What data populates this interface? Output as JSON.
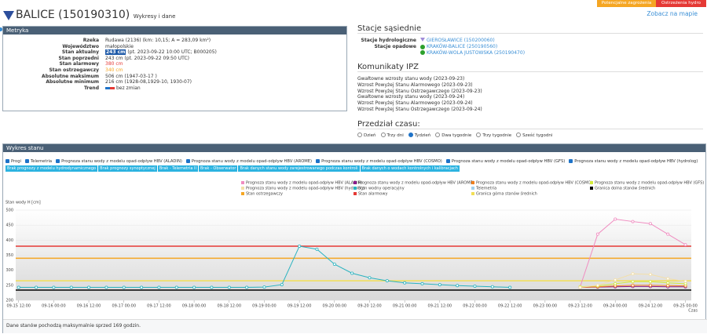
{
  "badges": {
    "warning": "Potencjalne zagrożenia",
    "hydro": "Ostrzeżenia hydro"
  },
  "header": {
    "map_link": "Zobacz na mapie",
    "title": "BALICE (150190310)",
    "subtitle": "Wykresy i dane"
  },
  "metryka": {
    "title": "Metryka",
    "rows": [
      {
        "label": "Rzeka",
        "value": "Rudawa (2136) (km: 10,15; A = 283,09 km²)"
      },
      {
        "label": "Województwo",
        "value": "małopolskie"
      },
      {
        "label": "Stan aktualny",
        "badge": "243 cm",
        "value": "(pt. 2023-09-22 10:00 UTC; B000205)"
      },
      {
        "label": "Stan poprzedni",
        "value": "243 cm (pt. 2023-09-22 09:50 UTC)"
      },
      {
        "label": "Stan alarmowy",
        "value": "380 cm"
      },
      {
        "label": "Stan ostrzegawczy",
        "value": "340 cm"
      },
      {
        "label": "Absolutne maksimum",
        "value": "506 cm (1947-03-17 )"
      },
      {
        "label": "Absolutne minimum",
        "value": "216 cm (1928-08,1929-10, 1930-07)"
      },
      {
        "label": "Trend",
        "value": "bez zmian"
      }
    ]
  },
  "sasiednie": {
    "title": "Stacje sąsiednie",
    "hydro_label": "Stacje hydrologiczne",
    "hydro": [
      "GIEROSŁAWICE (150200060)"
    ],
    "opad_label": "Stacje opadowe",
    "opad": [
      "KRAKÓW-BALICE (250190560)",
      "KRAKÓW-WOLA JUSTOWSKA (250190470)"
    ]
  },
  "komunikaty": {
    "title": "Komunikaty IPZ",
    "items": [
      "Gwałtowne wzrosty stanu wody (2023-09-23)",
      "Wzrost Powyżej Stanu Alarmowego (2023-09-23)",
      "Wzrost Powyżej Stanu Ostrzegawczego (2023-09-23)",
      "Gwałtowne wzrosty stanu wody (2023-09-24)",
      "Wzrost Powyżej Stanu Alarmowego (2023-09-24)",
      "Wzrost Powyżej Stanu Ostrzegawczego (2023-09-24)"
    ]
  },
  "przedzial": {
    "title": "Przedział czasu:",
    "options": [
      "Dzień",
      "Trzy dni",
      "Tydzień",
      "Dwa tygodnie",
      "Trzy tygodnie",
      "Sześć tygodni"
    ],
    "selected": 2
  },
  "wykres": {
    "title": "Wykres stanu",
    "checkboxes": [
      "Progi",
      "Telemetria",
      "Prognoza stanu wody z modelu opad-odpływ HBV (ALADIN)",
      "Prognoza stanu wody z modelu opad-odpływ HBV (AROME)",
      "Prognoza stanu wody z modelu opad-odpływ HBV (COSMO)",
      "Prognoza stanu wody z modelu opad-odpływ HBV (GFS)",
      "Prognoza stanu wody z modelu opad-odpływ HBV (hydrolog)"
    ],
    "buttons": [
      "Brak prognozy z modelu hydrodynamicznego",
      "Brak prognozy synoptycznej",
      "Brak - Telemetria II",
      "Brak - Obserwator",
      "Brak danych stanu wody zarejestrowanego podczas kontroli",
      "Brak danych o wodach kontrolnych i kalibracjach"
    ],
    "footer": "Dane stanów pochodzą maksymalnie sprzed 169 godzin."
  },
  "chart_data": {
    "type": "line",
    "y_label": "Stan wody H [cm]",
    "x_label": "Czas",
    "ylim": [
      200,
      500
    ],
    "yticks": [
      200,
      250,
      300,
      350,
      400,
      450,
      500
    ],
    "xlim": [
      "09-15 11:00",
      "09-25 02:00"
    ],
    "xticks": [
      "09-15 12:00",
      "09-16 00:00",
      "09-16 12:00",
      "09-17 00:00",
      "09-17 12:00",
      "09-18 00:00",
      "09-18 12:00",
      "09-19 00:00",
      "09-19 12:00",
      "09-20 00:00",
      "09-20 12:00",
      "09-21 00:00",
      "09-21 12:00",
      "09-22 00:00",
      "09-22 12:00",
      "09-23 00:00",
      "09-23 12:00",
      "09-24 00:00",
      "09-24 12:00",
      "09-25 00:00"
    ],
    "series": [
      {
        "name": "Prognoza stanu wody z modelu opad-odpływ HBV (ALADIN)",
        "color": "#f08cc0",
        "x": [
          "09-23 12:00",
          "09-23 18:00",
          "09-24 00:00",
          "09-24 06:00",
          "09-24 12:00",
          "09-24 18:00",
          "09-25 00:00"
        ],
        "values": [
          245,
          420,
          470,
          462,
          455,
          420,
          385
        ]
      },
      {
        "name": "Prognoza stanu wody z modelu opad-odpływ HBV (AROME)",
        "color": "#8b1a8b",
        "x": [
          "09-23 12:00",
          "09-23 18:00",
          "09-24 00:00",
          "09-24 06:00",
          "09-24 12:00",
          "09-24 18:00",
          "09-25 00:00"
        ],
        "values": [
          243,
          244,
          245,
          246,
          246,
          245,
          245
        ]
      },
      {
        "name": "Prognoza stanu wody z modelu opad-odpływ HBV (COSMO)",
        "color": "#f07f1e",
        "x": [
          "09-23 12:00",
          "09-23 18:00",
          "09-24 00:00",
          "09-24 06:00",
          "09-24 12:00",
          "09-24 18:00",
          "09-25 00:00"
        ],
        "values": [
          243,
          245,
          248,
          250,
          250,
          249,
          248
        ]
      },
      {
        "name": "Prognoza stanu wody z modelu opad-odpływ HBV (GFS)",
        "color": "#d4ec3a",
        "x": [
          "09-23 12:00",
          "09-23 18:00",
          "09-24 00:00",
          "09-24 06:00",
          "09-24 12:00",
          "09-24 18:00",
          "09-25 00:00"
        ],
        "values": [
          245,
          248,
          255,
          262,
          262,
          258,
          255
        ]
      },
      {
        "name": "Prognoza stanu wody z modelu opad-odpływ HBV (hydrolog)",
        "color": "#f3dfa8",
        "x": [
          "09-23 12:00",
          "09-23 18:00",
          "09-24 00:00",
          "09-24 06:00",
          "09-24 12:00",
          "09-24 18:00",
          "09-25 00:00"
        ],
        "values": [
          243,
          250,
          268,
          288,
          286,
          272,
          263
        ]
      },
      {
        "name": "Stan wodny operacyjny",
        "color": "#2ab3c0",
        "x": [
          "09-15 12:00",
          "09-15 18:00",
          "09-16 00:00",
          "09-16 06:00",
          "09-16 12:00",
          "09-16 18:00",
          "09-17 00:00",
          "09-17 06:00",
          "09-17 12:00",
          "09-17 18:00",
          "09-18 00:00",
          "09-18 06:00",
          "09-18 12:00",
          "09-18 18:00",
          "09-19 00:00",
          "09-19 06:00",
          "09-19 12:00",
          "09-19 18:00",
          "09-20 00:00",
          "09-20 06:00",
          "09-20 12:00",
          "09-20 18:00",
          "09-21 00:00",
          "09-21 06:00",
          "09-21 12:00",
          "09-21 18:00",
          "09-22 00:00",
          "09-22 06:00",
          "09-22 12:00"
        ],
        "values": [
          243,
          243,
          243,
          243,
          243,
          243,
          243,
          243,
          243,
          243,
          243,
          243,
          243,
          243,
          244,
          252,
          380,
          370,
          320,
          290,
          275,
          265,
          258,
          255,
          252,
          249,
          247,
          245,
          243
        ]
      },
      {
        "name": "Telemetria",
        "color": "#9fd0ef",
        "x": [],
        "values": []
      }
    ],
    "thresholds": [
      {
        "name": "Granica dolna stanów średnich",
        "color": "#000000",
        "value": 234
      },
      {
        "name": "Stan ostrzegawczy",
        "color": "#f5a623",
        "value": 340
      },
      {
        "name": "Stan alarmowy",
        "color": "#e53935",
        "value": 380
      },
      {
        "name": "Granica górna stanów średnich",
        "color": "#f2de55",
        "value": 265
      }
    ]
  }
}
